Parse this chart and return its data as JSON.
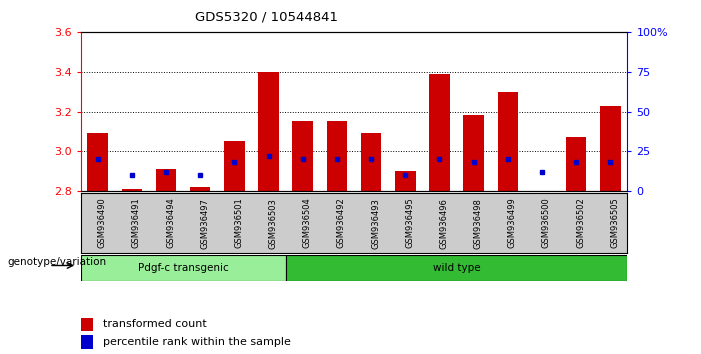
{
  "title": "GDS5320 / 10544841",
  "samples": [
    "GSM936490",
    "GSM936491",
    "GSM936494",
    "GSM936497",
    "GSM936501",
    "GSM936503",
    "GSM936504",
    "GSM936492",
    "GSM936493",
    "GSM936495",
    "GSM936496",
    "GSM936498",
    "GSM936499",
    "GSM936500",
    "GSM936502",
    "GSM936505"
  ],
  "transformed_count": [
    3.09,
    2.81,
    2.91,
    2.82,
    3.05,
    3.4,
    3.15,
    3.15,
    3.09,
    2.9,
    3.39,
    3.18,
    3.3,
    2.8,
    3.07,
    3.23
  ],
  "percentile_rank": [
    20,
    10,
    12,
    10,
    18,
    22,
    20,
    20,
    20,
    10,
    20,
    18,
    20,
    12,
    18,
    18
  ],
  "ymin": 2.8,
  "ymax": 3.6,
  "y2min": 0,
  "y2max": 100,
  "group1_label": "Pdgf-c transgenic",
  "group2_label": "wild type",
  "group1_count": 6,
  "group2_count": 10,
  "genotype_label": "genotype/variation",
  "legend1": "transformed count",
  "legend2": "percentile rank within the sample",
  "bar_color": "#cc0000",
  "dot_color": "#0000cc",
  "group1_color": "#99ee99",
  "group2_color": "#33bb33",
  "bg_color": "#cccccc",
  "yticks_left": [
    2.8,
    3.0,
    3.2,
    3.4,
    3.6
  ],
  "yticks_right": [
    0,
    25,
    50,
    75,
    100
  ],
  "ytick_labels_right": [
    "0",
    "25",
    "50",
    "75",
    "100%"
  ]
}
